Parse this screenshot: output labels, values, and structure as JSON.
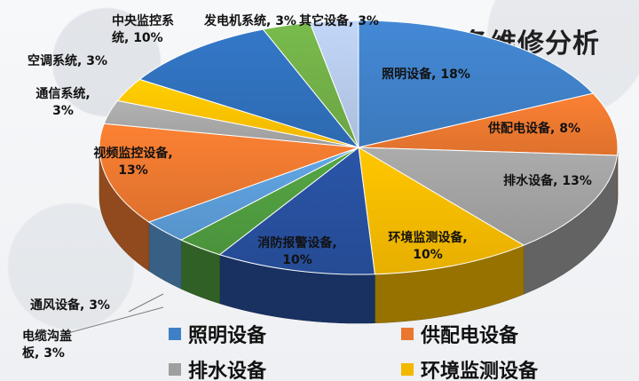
{
  "title": "设备维修分析",
  "chart_data": {
    "type": "pie",
    "title": "设备维修分析",
    "slices": [
      {
        "name": "照明设备",
        "value": 18,
        "label": "照明设备, 18%",
        "color": "#3f7fc6"
      },
      {
        "name": "供配电设备",
        "value": 8,
        "label": "供配电设备, 8%",
        "color": "#e9772f"
      },
      {
        "name": "排水设备",
        "value": 13,
        "label": "排水设备, 13%",
        "color": "#9f9f9f"
      },
      {
        "name": "环境监测设备",
        "value": 10,
        "label": "环境监测设备, 10%",
        "color": "#f3b800"
      },
      {
        "name": "消防报警设备",
        "value": 10,
        "label": "消防报警设备, 10%",
        "color": "#274f9c"
      },
      {
        "name": "电缆沟盖板",
        "value": 3,
        "label": "电缆沟盖板, 3%",
        "color": "#4f9b3f"
      },
      {
        "name": "通风设备",
        "value": 3,
        "label": "通风设备, 3%",
        "color": "#5b9bd5"
      },
      {
        "name": "视频监控设备",
        "value": 13,
        "label": "视频监控设备, 13%",
        "color": "#e9772f"
      },
      {
        "name": "通信系统",
        "value": 3,
        "label": "通信系统, 3%",
        "color": "#a5a5a5"
      },
      {
        "name": "空调系统",
        "value": 3,
        "label": "空调系统, 3%",
        "color": "#ffc000"
      },
      {
        "name": "中央监控系统",
        "value": 10,
        "label": "中央监控系统, 10%",
        "color": "#2f6fb9"
      },
      {
        "name": "发电机系统",
        "value": 3,
        "label": "发电机系统, 3%",
        "color": "#70ad47"
      },
      {
        "name": "其它设备",
        "value": 3,
        "label": "其它设备, 3%",
        "color": "#b4c7e7"
      }
    ],
    "legend": [
      {
        "label": "照明设备",
        "color": "#3f7fc6"
      },
      {
        "label": "供配电设备",
        "color": "#e9772f"
      },
      {
        "label": "排水设备",
        "color": "#9f9f9f"
      },
      {
        "label": "环境监测设备",
        "color": "#f3b800"
      }
    ],
    "legend_position": "bottom"
  }
}
